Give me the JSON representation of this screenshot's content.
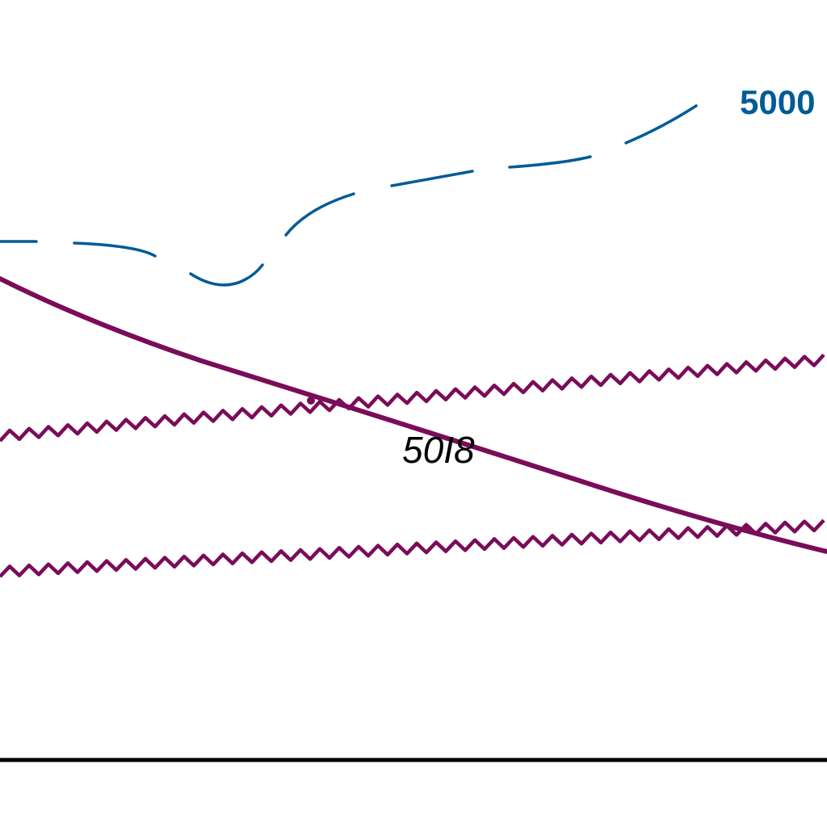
{
  "map": {
    "contour": {
      "label": "5000",
      "color": "#005b96",
      "style": "dashed"
    },
    "route": {
      "label": "50I8",
      "color": "#7a0c59"
    },
    "wavy_lines": {
      "color": "#7a0c59",
      "count": 2
    },
    "baseline": {
      "color": "#000000"
    },
    "label_color": "#000000"
  }
}
